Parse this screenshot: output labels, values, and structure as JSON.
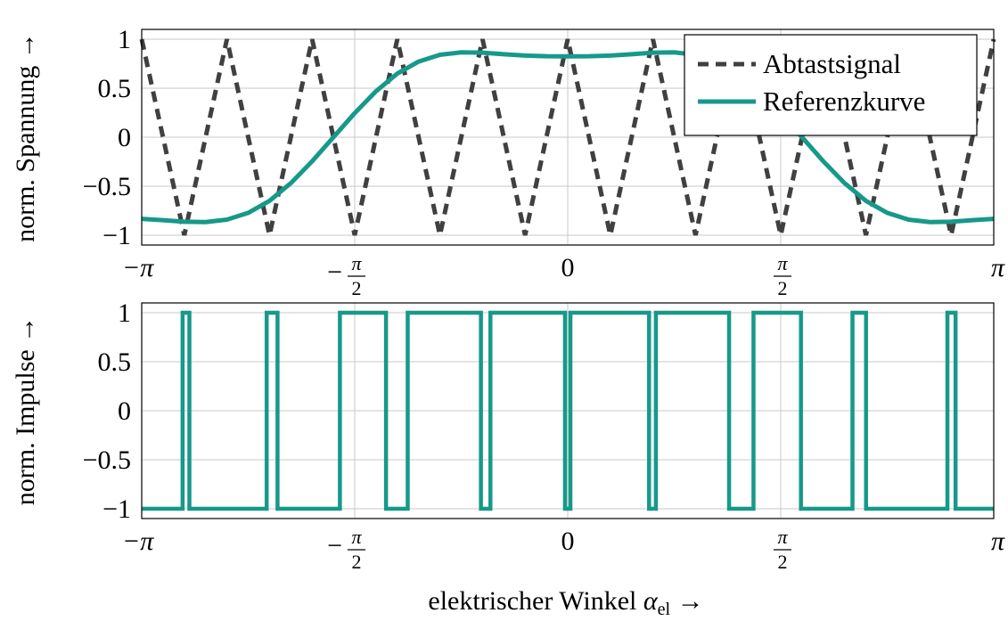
{
  "colors": {
    "abtast": "#404040",
    "referenz": "#16998a",
    "impulse": "#16998a"
  },
  "chart_data": [
    {
      "type": "line",
      "ylabel": "norm. Spannung →",
      "xlim_label": [
        "−π",
        "π"
      ],
      "xlim": [
        -3.14159,
        3.14159
      ],
      "ylim": [
        -1.1,
        1.1
      ],
      "grid": true,
      "legend_position": "top-right",
      "x_ticks": [
        {
          "value": -3.14159,
          "label": "−π"
        },
        {
          "value": -1.5708,
          "sign": "−",
          "num": "π",
          "den": "2"
        },
        {
          "value": 0,
          "label": "0"
        },
        {
          "value": 1.5708,
          "sign": "",
          "num": "π",
          "den": "2"
        },
        {
          "value": 3.14159,
          "label": "π"
        }
      ],
      "y_ticks": [
        {
          "value": 1,
          "label": "1"
        },
        {
          "value": 0.5,
          "label": "0.5"
        },
        {
          "value": 0,
          "label": "0"
        },
        {
          "value": -0.5,
          "label": "−0.5"
        },
        {
          "value": -1,
          "label": "−1"
        }
      ],
      "series": [
        {
          "name": "Abtastsignal",
          "style": "dashed",
          "x": [
            -3.14159,
            -2.82743,
            -2.51327,
            -2.19911,
            -1.88496,
            -1.5708,
            -1.25664,
            -0.94248,
            -0.62832,
            -0.31416,
            0,
            0.31416,
            0.62832,
            0.94248,
            1.25664,
            1.5708,
            1.88496,
            2.19911,
            2.51327,
            2.82743,
            3.14159
          ],
          "y": [
            1,
            -1,
            1,
            -1,
            1,
            -1,
            1,
            -1,
            1,
            -1,
            1,
            -1,
            1,
            -1,
            1,
            -1,
            1,
            -1,
            1,
            -1,
            1
          ]
        },
        {
          "name": "Referenzkurve",
          "style": "solid",
          "x": [
            -3.14159,
            -2.98451,
            -2.82743,
            -2.67035,
            -2.51327,
            -2.35619,
            -2.19911,
            -2.04204,
            -1.88496,
            -1.72788,
            -1.5708,
            -1.41372,
            -1.25664,
            -1.09956,
            -0.94248,
            -0.7854,
            -0.62832,
            -0.47124,
            -0.31416,
            -0.15708,
            0,
            0.15708,
            0.31416,
            0.47124,
            0.62832,
            0.7854,
            0.94248,
            1.09956,
            1.25664,
            1.41372,
            1.5708,
            1.72788,
            1.88496,
            2.04204,
            2.19911,
            2.35619,
            2.51327,
            2.67035,
            2.82743,
            2.98451,
            3.14159
          ],
          "y": [
            -0.833,
            -0.847,
            -0.863,
            -0.866,
            -0.841,
            -0.772,
            -0.649,
            -0.469,
            -0.246,
            0,
            0.246,
            0.469,
            0.649,
            0.772,
            0.841,
            0.866,
            0.863,
            0.847,
            0.833,
            0.826,
            0.825,
            0.826,
            0.833,
            0.847,
            0.863,
            0.866,
            0.841,
            0.772,
            0.649,
            0.469,
            0.246,
            0,
            -0.246,
            -0.469,
            -0.649,
            -0.772,
            -0.841,
            -0.866,
            -0.863,
            -0.847,
            -0.833
          ]
        }
      ]
    },
    {
      "type": "line",
      "ylabel": "norm. Impulse →",
      "xlabel_text": "elektrischer Winkel ",
      "xlabel_symbol": "α",
      "xlabel_sub": "el",
      "xlabel_arrow": " →",
      "xlim": [
        -3.14159,
        3.14159
      ],
      "ylim": [
        -1.1,
        1.1
      ],
      "grid": true,
      "x_ticks": [
        {
          "value": -3.14159,
          "label": "−π"
        },
        {
          "value": -1.5708,
          "sign": "−",
          "num": "π",
          "den": "2"
        },
        {
          "value": 0,
          "label": "0"
        },
        {
          "value": 1.5708,
          "sign": "",
          "num": "π",
          "den": "2"
        },
        {
          "value": 3.14159,
          "label": "π"
        }
      ],
      "y_ticks": [
        {
          "value": 1,
          "label": "1"
        },
        {
          "value": 0.5,
          "label": "0.5"
        },
        {
          "value": 0,
          "label": "0"
        },
        {
          "value": -0.5,
          "label": "−0.5"
        },
        {
          "value": -1,
          "label": "−1"
        }
      ],
      "series": [
        {
          "style": "step",
          "x": [
            -3.14159,
            -2.84,
            -2.84,
            -2.79,
            -2.79,
            -2.22,
            -2.22,
            -2.14,
            -2.14,
            -1.68,
            -1.68,
            -1.34,
            -1.34,
            -1.18,
            -1.18,
            -0.64,
            -0.64,
            -0.57,
            -0.57,
            -0.02,
            -0.02,
            0.02,
            0.02,
            0.6,
            0.6,
            0.65,
            0.65,
            1.19,
            1.19,
            1.37,
            1.37,
            1.72,
            1.72,
            2.1,
            2.1,
            2.2,
            2.2,
            2.8,
            2.8,
            2.86,
            2.86,
            3.14159
          ],
          "y": [
            -1,
            -1,
            1,
            1,
            -1,
            -1,
            1,
            1,
            -1,
            -1,
            1,
            1,
            -1,
            -1,
            1,
            1,
            -1,
            -1,
            1,
            1,
            -1,
            -1,
            1,
            1,
            -1,
            -1,
            1,
            1,
            -1,
            -1,
            1,
            1,
            -1,
            -1,
            1,
            1,
            -1,
            -1,
            1,
            1,
            -1,
            -1
          ]
        }
      ]
    }
  ]
}
